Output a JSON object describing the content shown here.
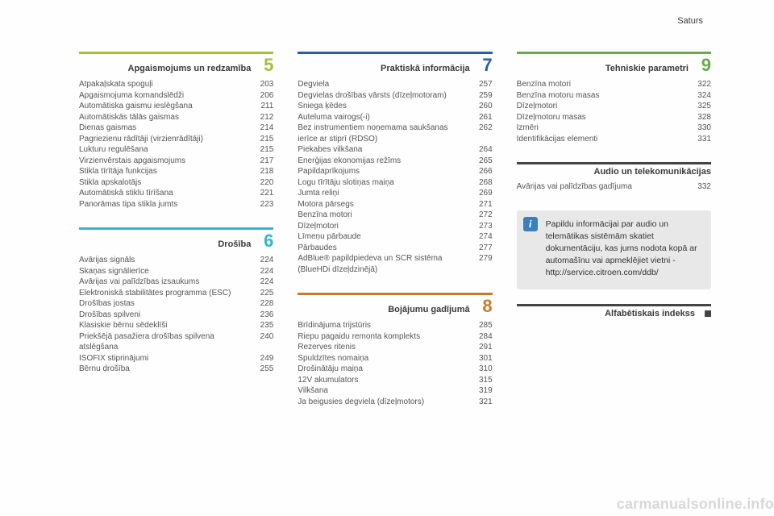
{
  "header_right": "Saturs",
  "columns": {
    "left": [
      {
        "number": "5",
        "title": "Apgaismojums un redzamība",
        "color": "#a7bf3a",
        "items": [
          {
            "label": "Atpakaļskata spoguļi",
            "page": "203"
          },
          {
            "label": "Apgaismojuma komandslēdži",
            "page": "206"
          },
          {
            "label": "Automātiska gaismu ieslēgšana",
            "page": "211"
          },
          {
            "label": "Automātiskās tālās gaismas",
            "page": "212"
          },
          {
            "label": "Dienas gaismas",
            "page": "214"
          },
          {
            "label": "Pagriezienu rādītāji (virzienrādītāji)",
            "page": "215"
          },
          {
            "label": "Lukturu regulēšana",
            "page": "215"
          },
          {
            "label": "Virzienvērstais apgaismojums",
            "page": "217"
          },
          {
            "label": "Stikla tīrītāja funkcijas",
            "page": "218"
          },
          {
            "label": "Stikla apskalotājs",
            "page": "220"
          },
          {
            "label": "Automātiskā stiklu tīrīšana",
            "page": "221"
          },
          {
            "label": "Panorāmas tipa stikla jumts",
            "page": "223"
          }
        ]
      },
      {
        "number": "6",
        "title": "Drošība",
        "color": "#2fb8c5",
        "items": [
          {
            "label": "Avārijas signāls",
            "page": "224"
          },
          {
            "label": "Skaņas signālierīce",
            "page": "224"
          },
          {
            "label": "Avārijas vai palīdzības izsaukums",
            "page": "224"
          },
          {
            "label": "Elektroniskā stabilitātes programma (ESC)",
            "page": "225"
          },
          {
            "label": "Drošības jostas",
            "page": "228"
          },
          {
            "label": "Drošības spilveni",
            "page": "236"
          },
          {
            "label": "Klasiskie bērnu sēdeklīši",
            "page": "235"
          },
          {
            "label": "Priekšējā pasažiera drošības spilvena atslēgšana",
            "page": "240"
          },
          {
            "label": "ISOFIX stiprinājumi",
            "page": "249"
          },
          {
            "label": "Bērnu drošība",
            "page": "255"
          }
        ]
      }
    ],
    "middle": [
      {
        "number": "7",
        "title": "Praktiskā informācija",
        "color": "#2a5fa8",
        "items": [
          {
            "label": "Degviela",
            "page": "257"
          },
          {
            "label": "Degvielas drošības vārsts (dīzeļmotoram)",
            "page": "259"
          },
          {
            "label": "Sniega ķēdes",
            "page": "260"
          },
          {
            "label": "Auteluma vairogs(-i)",
            "page": "261"
          },
          {
            "label": "Bez instrumentiem noņemama saukšanas ierīce ar stiprī (RDSO)",
            "page": "262"
          },
          {
            "label": "Piekabes vilkšana",
            "page": "264"
          },
          {
            "label": "Enerģijas ekonomijas režīms",
            "page": "265"
          },
          {
            "label": "Papildaprīkojums",
            "page": "266"
          },
          {
            "label": "Logu tīrītāju slotiņas maiņa",
            "page": "268"
          },
          {
            "label": "Jumta reliņi",
            "page": "269"
          },
          {
            "label": "Motora pārsegs",
            "page": "271"
          },
          {
            "label": "Benzīna motori",
            "page": "272"
          },
          {
            "label": "Dīzeļmotori",
            "page": "273"
          },
          {
            "label": "Līmeņu pārbaude",
            "page": "274"
          },
          {
            "label": "Pārbaudes",
            "page": "277"
          },
          {
            "label": "AdBlue® papildpiedeva un SCR sistēma (BlueHDi dīzeļdzinējā)",
            "page": "279"
          }
        ]
      },
      {
        "number": "8",
        "title": "Bojājumu gadījumā",
        "color": "#c77c2a",
        "items": [
          {
            "label": "Brīdinājuma trijstūris",
            "page": "285"
          },
          {
            "label": "Riepu pagaidu remonta komplekts",
            "page": "284"
          },
          {
            "label": "Rezerves ritenis",
            "page": "291"
          },
          {
            "label": "Spuldzītes nomaiņa",
            "page": "301"
          },
          {
            "label": "Drošinātāju maiņa",
            "page": "310"
          },
          {
            "label": "12V akumulators",
            "page": "315"
          },
          {
            "label": "Vilkšana",
            "page": "319"
          },
          {
            "label": "Ja beigusies degviela (dīzeļmotors)",
            "page": "321"
          }
        ]
      }
    ],
    "right": [
      {
        "number": "9",
        "title": "Tehniskie parametri",
        "color": "#6aa84f",
        "items": [
          {
            "label": "Benzīna motori",
            "page": "322"
          },
          {
            "label": "Benzīna motoru masas",
            "page": "324"
          },
          {
            "label": "Dīzeļmotori",
            "page": "325"
          },
          {
            "label": "Dīzeļmotoru masas",
            "page": "328"
          },
          {
            "label": "Izmēri",
            "page": "330"
          },
          {
            "label": "Identifikācijas elementi",
            "page": "331"
          }
        ]
      },
      {
        "title_only": "Audio un telekomunikācijas",
        "color": "#444444",
        "items": [
          {
            "label": "Avārijas vai palīdzības gadījuma",
            "page": "332"
          }
        ]
      }
    ]
  },
  "infobox": {
    "icon_label": "i",
    "text": "Papildu informācijai par audio un telemātikas sistēmām skatiet dokumentāciju, kas jums nodota kopā ar automašīnu vai apmeklējiet vietni - http://service.citroen.com/ddb/"
  },
  "index_label": "Alfabētiskais indekss",
  "watermark": "carmanualsonline.info"
}
